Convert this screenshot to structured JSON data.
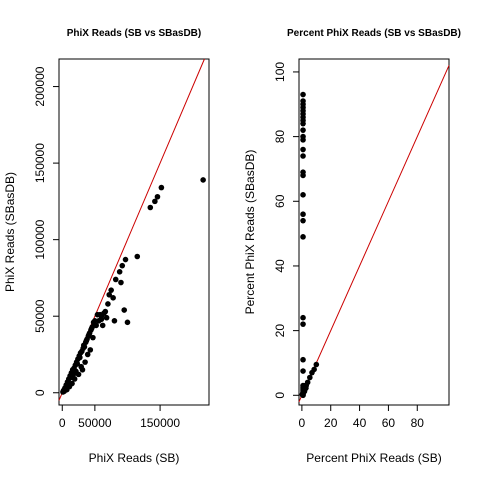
{
  "chart_data": [
    {
      "type": "scatter",
      "title": "PhiX Reads (SB vs SBasDB)",
      "xlabel": "PhiX Reads (SB)",
      "ylabel": "PhiX Reads (SBasDB)",
      "xlim": [
        -5000,
        225000
      ],
      "ylim": [
        -8000,
        218000
      ],
      "xticks": [
        0,
        50000,
        150000
      ],
      "xtick_labels": [
        "0",
        "50000",
        "150000"
      ],
      "yticks": [
        0,
        50000,
        100000,
        150000,
        200000
      ],
      "ytick_labels": [
        "0",
        "50000",
        "100000",
        "150000",
        "200000"
      ],
      "grid": false,
      "reference_line": {
        "slope": 1,
        "intercept": 0,
        "color": "#cc0000"
      },
      "point_color": "#000000",
      "x": [
        216000,
        152000,
        146000,
        142000,
        135000,
        115000,
        100000,
        97000,
        92000,
        88000,
        80000,
        78000,
        75000,
        72000,
        68000,
        66000,
        64000,
        62000,
        60000,
        58000,
        56000,
        52000,
        48000,
        46000,
        44000,
        42000,
        40000,
        38000,
        36000,
        34000,
        32000,
        30000,
        28000,
        26000,
        24000,
        22000,
        20000,
        18000,
        16000,
        14000,
        12000,
        10000,
        8000,
        6000,
        4000,
        2000,
        1000,
        95000,
        90000,
        82000,
        70000,
        54000,
        50000,
        45000,
        41000,
        37000,
        33000,
        29000,
        27000,
        25000,
        23000,
        21000,
        19000,
        17000,
        15000,
        13000,
        11000,
        9000,
        7000,
        5000,
        3000,
        35000,
        31000,
        43000,
        39000,
        47000,
        60000
      ],
      "y": [
        139000,
        134000,
        128000,
        125000,
        121000,
        89000,
        46000,
        87000,
        83000,
        79000,
        47000,
        62000,
        67000,
        64000,
        49000,
        53000,
        52000,
        44000,
        48000,
        51000,
        47000,
        44000,
        46000,
        43000,
        41000,
        39000,
        37000,
        35000,
        33000,
        30000,
        29000,
        27000,
        26000,
        24000,
        22000,
        20000,
        18000,
        16000,
        15000,
        13000,
        11000,
        9000,
        7000,
        5000,
        3000,
        1500,
        500,
        54000,
        72000,
        74000,
        58000,
        51000,
        47000,
        42000,
        38000,
        34000,
        31000,
        17000,
        23000,
        12000,
        19000,
        14000,
        9000,
        12000,
        6000,
        10000,
        4000,
        7000,
        2000,
        3000,
        1000,
        20000,
        15000,
        28000,
        25000,
        36000,
        50000
      ]
    },
    {
      "type": "scatter",
      "title": "Percent PhiX Reads (SB vs SBasDB)",
      "xlabel": "Percent PhiX Reads (SB)",
      "ylabel": "Percent PhiX Reads (SBasDB)",
      "xlim": [
        -2,
        102
      ],
      "ylim": [
        -3,
        104
      ],
      "xticks": [
        0,
        20,
        40,
        60,
        80
      ],
      "xtick_labels": [
        "0",
        "20",
        "40",
        "60",
        "80"
      ],
      "yticks": [
        0,
        20,
        40,
        60,
        80,
        100
      ],
      "ytick_labels": [
        "0",
        "20",
        "40",
        "60",
        "80",
        "100"
      ],
      "grid": false,
      "reference_line": {
        "slope": 1,
        "intercept": 0,
        "color": "#cc0000"
      },
      "point_color": "#000000",
      "x": [
        0.8,
        0.8,
        0.8,
        0.8,
        0.8,
        0.8,
        0.8,
        0.8,
        0.8,
        0.8,
        0.8,
        0.8,
        0.8,
        0.8,
        0.8,
        0.8,
        0.8,
        0.8,
        0.8,
        0.8,
        0.8,
        0.8,
        0.8,
        0.8,
        0.8,
        0.8,
        0.8,
        0.8,
        0.8,
        0.8,
        0.8,
        0.8,
        0.3,
        0.6,
        1.0,
        1.5,
        2.0,
        2.5,
        3.0,
        4.0,
        5.5,
        7.0,
        8.5,
        10.0,
        1.8,
        2.8
      ],
      "y": [
        93,
        91,
        90,
        89,
        88,
        87,
        86,
        85,
        84,
        82,
        80,
        79,
        76,
        74,
        69,
        68,
        62,
        56,
        54,
        49,
        24,
        22,
        11,
        7.5,
        2,
        1.5,
        1,
        0.5,
        0.2,
        0,
        3,
        2.5,
        0.2,
        0.5,
        1,
        1.5,
        2,
        3,
        3,
        4,
        5.5,
        7,
        8,
        9.5,
        1.2,
        2.2
      ]
    }
  ]
}
